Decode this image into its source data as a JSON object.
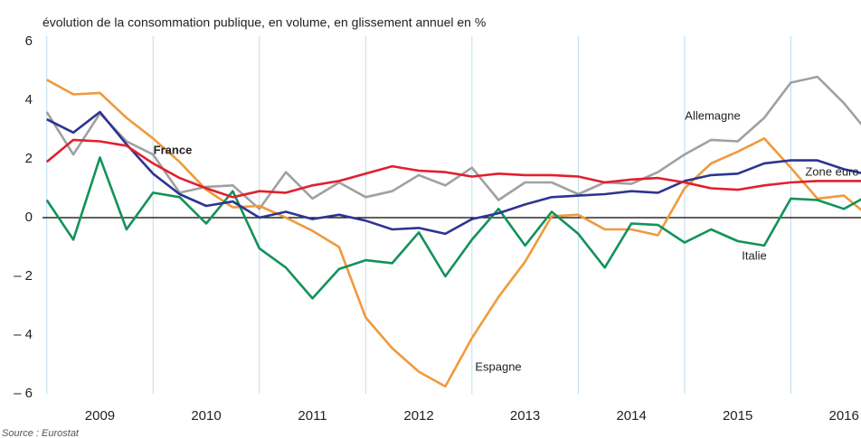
{
  "chart_data": {
    "type": "line",
    "subtitle": "évolution de la consommation publique, en volume, en glissement annuel en %",
    "source": "Source : Eurostat",
    "x": [
      2009,
      2009.25,
      2009.5,
      2009.75,
      2010,
      2010.25,
      2010.5,
      2010.75,
      2011,
      2011.25,
      2011.5,
      2011.75,
      2012,
      2012.25,
      2012.5,
      2012.75,
      2013,
      2013.25,
      2013.5,
      2013.75,
      2014,
      2014.25,
      2014.5,
      2014.75,
      2015,
      2015.25,
      2015.5,
      2015.75,
      2016,
      2016.25,
      2016.5,
      2016.75
    ],
    "xlim": [
      2008.96,
      2016.66
    ],
    "xticks": [
      {
        "value": 2009,
        "label": "2009"
      },
      {
        "value": 2010,
        "label": "2010"
      },
      {
        "value": 2011,
        "label": "2011"
      },
      {
        "value": 2012,
        "label": "2012"
      },
      {
        "value": 2013,
        "label": "2013"
      },
      {
        "value": 2014,
        "label": "2014"
      },
      {
        "value": 2015,
        "label": "2015"
      },
      {
        "value": 2016,
        "label": "2016"
      }
    ],
    "ylim": [
      -6,
      6
    ],
    "yticks": [
      {
        "value": -6,
        "label": "– 6"
      },
      {
        "value": -4,
        "label": "– 4"
      },
      {
        "value": -2,
        "label": "– 2"
      },
      0,
      2,
      4,
      6
    ],
    "series": [
      {
        "name": "Allemagne",
        "color": "#a0a0a0",
        "values": [
          3.6,
          2.15,
          3.55,
          2.6,
          2.15,
          0.85,
          1.05,
          1.1,
          0.3,
          1.55,
          0.65,
          1.2,
          0.7,
          0.9,
          1.45,
          1.1,
          1.7,
          0.6,
          1.2,
          1.2,
          0.8,
          1.2,
          1.15,
          1.55,
          2.15,
          2.65,
          2.6,
          3.4,
          4.6,
          4.8,
          3.9,
          2.8
        ]
      },
      {
        "name": "Espagne",
        "color": "#f09a3c",
        "values": [
          4.7,
          4.2,
          4.25,
          3.4,
          2.7,
          1.9,
          0.95,
          0.35,
          0.4,
          0.0,
          -0.45,
          -1.0,
          -3.4,
          -4.45,
          -5.25,
          -5.75,
          -4.1,
          -2.7,
          -1.5,
          0.05,
          0.1,
          -0.4,
          -0.4,
          -0.6,
          1.0,
          1.85,
          2.25,
          2.7,
          1.7,
          0.65,
          0.75,
          0.0
        ]
      },
      {
        "name": "Italie",
        "color": "#12925a",
        "values": [
          0.6,
          -0.75,
          2.05,
          -0.4,
          0.85,
          0.7,
          -0.2,
          0.9,
          -1.05,
          -1.7,
          -2.75,
          -1.75,
          -1.45,
          -1.55,
          -0.5,
          -2.0,
          -0.75,
          0.3,
          -0.95,
          0.2,
          -0.55,
          -1.7,
          -0.2,
          -0.25,
          -0.85,
          -0.4,
          -0.8,
          -0.95,
          0.65,
          0.6,
          0.3,
          0.8
        ]
      },
      {
        "name": "Zone euro",
        "color": "#2e3490",
        "values": [
          3.35,
          2.9,
          3.6,
          2.5,
          1.5,
          0.8,
          0.4,
          0.55,
          0.0,
          0.2,
          -0.05,
          0.1,
          -0.1,
          -0.4,
          -0.35,
          -0.55,
          -0.05,
          0.15,
          0.45,
          0.7,
          0.75,
          0.8,
          0.9,
          0.85,
          1.25,
          1.45,
          1.5,
          1.85,
          1.95,
          1.95,
          1.65,
          1.45
        ]
      },
      {
        "name": "France",
        "color": "#e0202e",
        "values": [
          1.9,
          2.65,
          2.6,
          2.45,
          1.85,
          1.35,
          1.0,
          0.7,
          0.9,
          0.85,
          1.1,
          1.25,
          1.5,
          1.75,
          1.6,
          1.55,
          1.4,
          1.5,
          1.45,
          1.45,
          1.4,
          1.2,
          1.3,
          1.35,
          1.2,
          1.0,
          0.95,
          1.1,
          1.2,
          1.25,
          1.25,
          1.25
        ]
      }
    ]
  }
}
